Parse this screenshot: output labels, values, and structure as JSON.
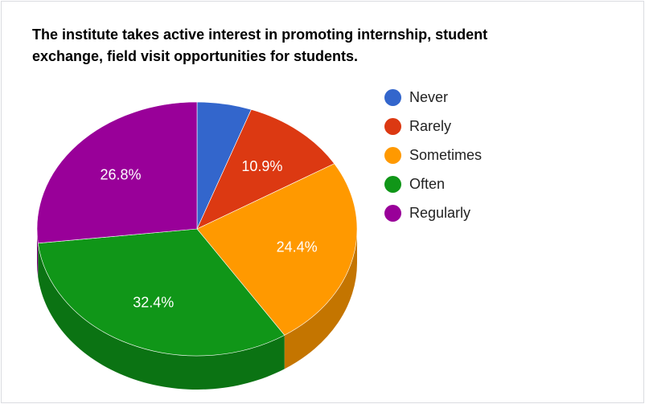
{
  "chart_data": {
    "type": "pie",
    "title": "The institute takes active interest in promoting internship, student exchange, field visit opportunities for students.",
    "legend_position": "right",
    "three_d": true,
    "series": [
      {
        "name": "Never",
        "value": 5.5,
        "color": "#3366cc",
        "shade": "#2a55a8",
        "label": ""
      },
      {
        "name": "Rarely",
        "value": 10.9,
        "color": "#dc3912",
        "shade": "#a82c0e",
        "label": "10.9%"
      },
      {
        "name": "Sometimes",
        "value": 24.4,
        "color": "#ff9900",
        "shade": "#c47500",
        "label": "24.4%"
      },
      {
        "name": "Often",
        "value": 32.4,
        "color": "#109618",
        "shade": "#0b7313",
        "label": "32.4%"
      },
      {
        "name": "Regularly",
        "value": 26.8,
        "color": "#990099",
        "shade": "#750075",
        "label": "26.8%"
      }
    ]
  }
}
